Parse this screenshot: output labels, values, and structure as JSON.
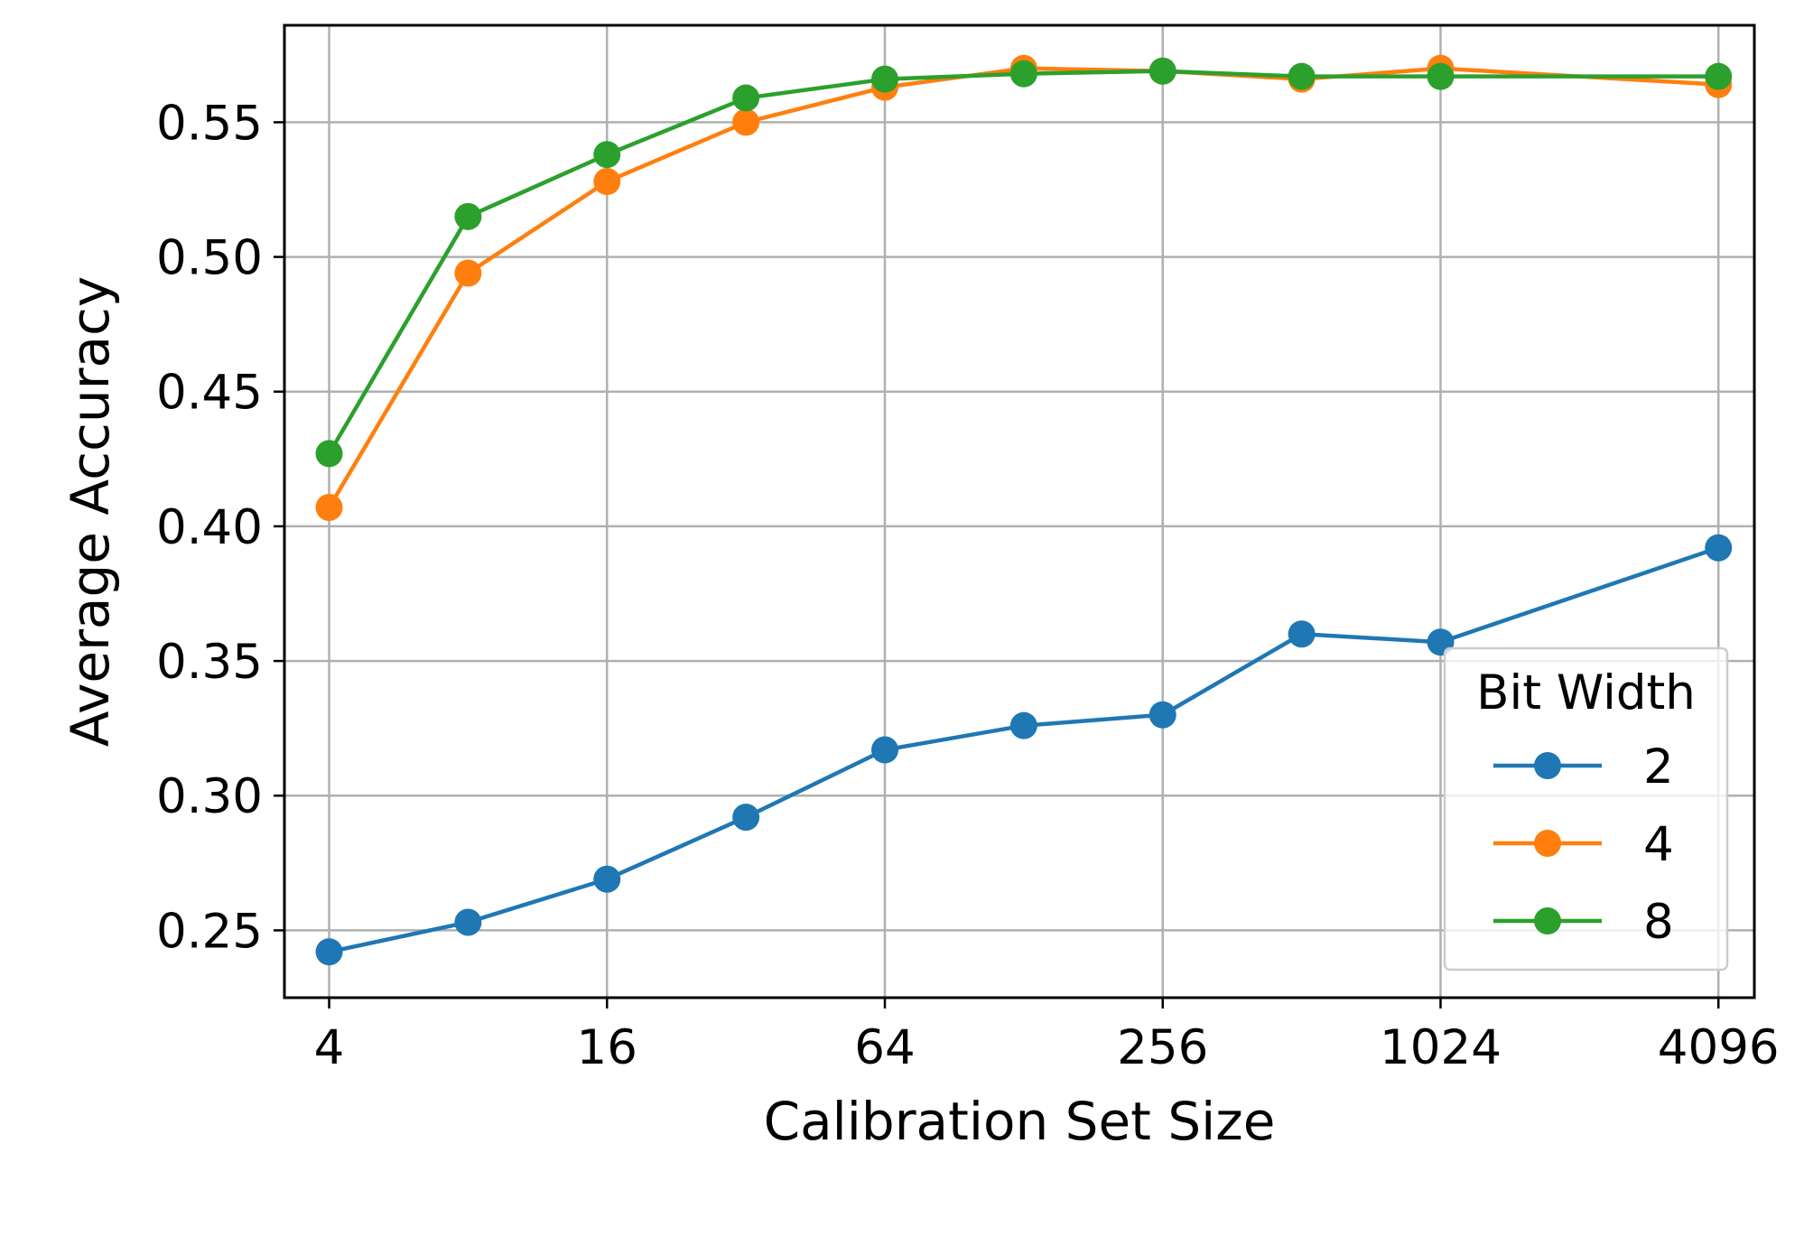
{
  "chart_data": {
    "type": "line",
    "xlabel": "Calibration Set Size",
    "ylabel": "Average Accuracy",
    "x": [
      4,
      8,
      16,
      32,
      64,
      128,
      256,
      512,
      1024,
      4096
    ],
    "x_scale": "log2",
    "xlim": [
      3.2,
      4900
    ],
    "ylim": [
      0.225,
      0.586
    ],
    "x_ticks": [
      4,
      16,
      64,
      256,
      1024,
      4096
    ],
    "x_tick_labels": [
      "4",
      "16",
      "64",
      "256",
      "1024",
      "4096"
    ],
    "y_ticks": [
      0.25,
      0.3,
      0.35,
      0.4,
      0.45,
      0.5,
      0.55
    ],
    "y_tick_labels": [
      "0.25",
      "0.30",
      "0.35",
      "0.40",
      "0.45",
      "0.50",
      "0.55"
    ],
    "grid": true,
    "legend": {
      "title": "Bit Width",
      "position": "lower-right"
    },
    "series": [
      {
        "name": "2",
        "color": "#1f77b4",
        "marker": "circle",
        "values": [
          0.242,
          0.253,
          0.269,
          0.292,
          0.317,
          0.326,
          0.33,
          0.36,
          0.357,
          0.392
        ]
      },
      {
        "name": "4",
        "color": "#ff7f0e",
        "marker": "circle",
        "values": [
          0.407,
          0.494,
          0.528,
          0.55,
          0.563,
          0.57,
          0.569,
          0.566,
          0.57,
          0.564
        ]
      },
      {
        "name": "8",
        "color": "#2ca02c",
        "marker": "circle",
        "values": [
          0.427,
          0.515,
          0.538,
          0.559,
          0.566,
          0.568,
          0.569,
          0.567,
          0.567,
          0.567
        ]
      }
    ]
  }
}
